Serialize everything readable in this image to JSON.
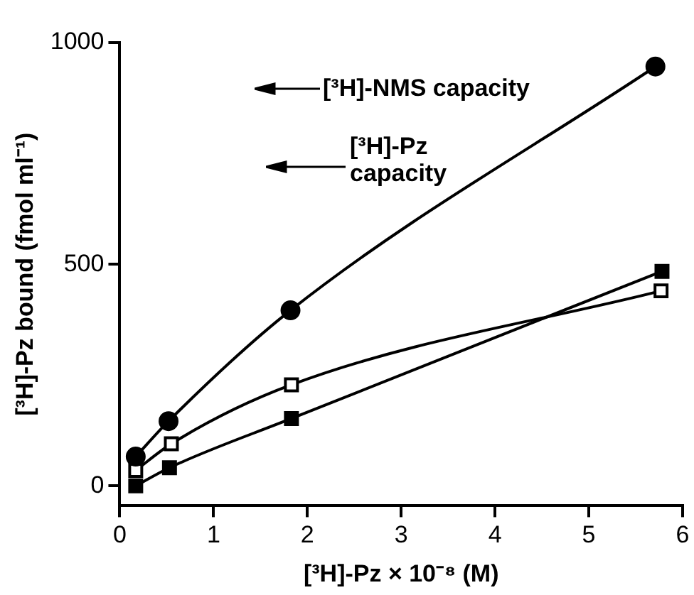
{
  "chart_data": {
    "type": "line",
    "xlabel": "[³H]-Pz × 10⁻⁸ (M)",
    "ylabel": "[³H]-Pz bound (fmol ml⁻¹)",
    "xlim": [
      0,
      6
    ],
    "xticks": [
      0,
      1,
      2,
      3,
      4,
      5,
      6
    ],
    "ylim": [
      -45,
      1000
    ],
    "yticks": [
      0,
      500,
      1000
    ],
    "grid": false,
    "legend": false,
    "line_style": "solid",
    "series": [
      {
        "color": "#000000",
        "marker": "circle",
        "x": [
          0.17,
          0.52,
          1.82,
          5.71
        ],
        "values": [
          66,
          146,
          396,
          946
        ]
      },
      {
        "color": "#000000",
        "colors": [
          "#ffffff",
          "#ffffff",
          "#ffffff",
          "#ffffff"
        ],
        "marker": "square",
        "x": [
          0.17,
          0.55,
          1.83,
          5.77
        ],
        "values": [
          35,
          95,
          228,
          440
        ]
      },
      {
        "color": "#000000",
        "marker": "square",
        "x": [
          0.17,
          0.53,
          1.83,
          5.78
        ],
        "values": [
          0,
          41,
          152,
          484
        ]
      }
    ],
    "annotations": [
      "[³H]-NMS capacity",
      "[³H]-Pz capacity"
    ]
  }
}
